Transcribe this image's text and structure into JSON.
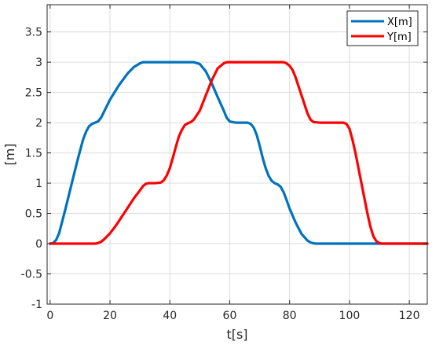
{
  "chart_data": {
    "type": "line",
    "title": "",
    "xlabel": "t[s]",
    "ylabel": "[m]",
    "xlim": [
      -1,
      126
    ],
    "ylim": [
      -1,
      3.95
    ],
    "xticks": [
      0,
      20,
      40,
      60,
      80,
      100,
      120
    ],
    "yticks": [
      -1,
      -0.5,
      0,
      0.5,
      1,
      1.5,
      2,
      2.5,
      3,
      3.5
    ],
    "ytick_labels": [
      "-1",
      "-0.5",
      "0",
      "0.5",
      "1",
      "1.5",
      "2",
      "2.5",
      "3",
      "3.5"
    ],
    "xtick_labels": [
      "0",
      "20",
      "40",
      "60",
      "80",
      "100",
      "120"
    ],
    "grid": true,
    "legend_position": "top-right",
    "series": [
      {
        "name": "X[m]",
        "color": "#0072BD",
        "x": [
          0,
          1,
          2,
          3,
          5,
          7,
          9,
          11,
          12,
          13,
          14,
          15,
          16,
          17,
          18,
          20,
          23,
          26,
          28,
          30,
          31,
          35,
          40,
          45,
          48,
          50,
          52,
          54,
          56,
          58,
          59,
          60,
          62,
          64,
          66,
          67,
          68,
          69,
          70,
          71,
          72,
          73,
          74,
          75,
          76,
          77,
          78,
          79,
          80,
          82,
          84,
          86,
          87,
          88,
          89,
          90,
          95,
          100,
          110,
          120,
          126
        ],
        "y": [
          0,
          0.01,
          0.06,
          0.17,
          0.55,
          0.95,
          1.35,
          1.72,
          1.85,
          1.94,
          1.98,
          2.0,
          2.02,
          2.08,
          2.18,
          2.38,
          2.62,
          2.82,
          2.92,
          2.98,
          3.0,
          3.0,
          3.0,
          3.0,
          3.0,
          2.97,
          2.85,
          2.65,
          2.42,
          2.2,
          2.08,
          2.02,
          2.0,
          2.0,
          2.0,
          1.98,
          1.92,
          1.8,
          1.62,
          1.42,
          1.25,
          1.12,
          1.04,
          1.0,
          0.98,
          0.94,
          0.85,
          0.72,
          0.58,
          0.35,
          0.16,
          0.05,
          0.02,
          0.005,
          0.0,
          0.0,
          0.0,
          0.0,
          0.0,
          0.0,
          0.0
        ]
      },
      {
        "name": "Y[m]",
        "color": "#FF0000",
        "x": [
          0,
          5,
          10,
          15,
          16,
          17,
          18,
          20,
          22,
          24,
          26,
          28,
          30,
          31,
          32,
          33,
          35,
          37,
          38,
          39,
          40,
          41,
          42,
          43,
          44,
          45,
          46,
          47,
          48,
          50,
          52,
          54,
          56,
          58,
          59,
          60,
          62,
          65,
          70,
          75,
          78,
          79,
          80,
          81,
          82,
          83,
          84,
          85,
          86,
          87,
          88,
          90,
          95,
          98,
          99,
          100,
          101,
          102,
          103,
          104,
          105,
          106,
          107,
          108,
          109,
          110,
          111,
          112,
          115,
          120,
          126
        ],
        "y": [
          0,
          0,
          0,
          0,
          0.01,
          0.03,
          0.07,
          0.17,
          0.3,
          0.45,
          0.6,
          0.75,
          0.88,
          0.95,
          0.99,
          1.0,
          1.0,
          1.01,
          1.05,
          1.13,
          1.25,
          1.42,
          1.6,
          1.77,
          1.88,
          1.96,
          1.99,
          2.01,
          2.05,
          2.2,
          2.45,
          2.7,
          2.9,
          2.98,
          3.0,
          3.0,
          3.0,
          3.0,
          3.0,
          3.0,
          3.0,
          2.98,
          2.94,
          2.87,
          2.75,
          2.6,
          2.45,
          2.3,
          2.15,
          2.05,
          2.01,
          2.0,
          2.0,
          2.0,
          1.98,
          1.9,
          1.72,
          1.5,
          1.25,
          1.0,
          0.75,
          0.5,
          0.28,
          0.12,
          0.04,
          0.01,
          0.0,
          0.0,
          0.0,
          0.0,
          0.0
        ]
      }
    ]
  }
}
